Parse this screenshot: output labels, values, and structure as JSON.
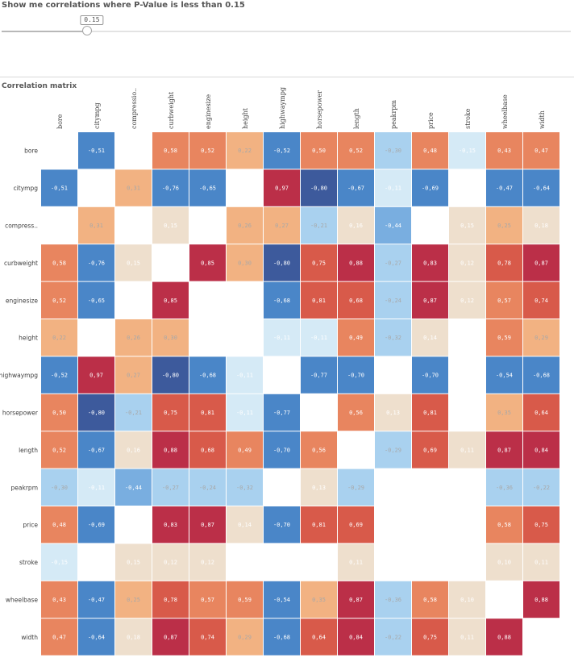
{
  "filter": {
    "title": "Show me correlations where P-Value is less than 0.15",
    "value": "0.15",
    "fraction": 0.15
  },
  "section_title": "Correlation matrix",
  "chart_data": {
    "type": "heatmap",
    "title": "Correlation matrix",
    "columns": [
      "bore",
      "citympg",
      "compressio..",
      "curbweight",
      "enginesize",
      "height",
      "highwaympg",
      "horsepower",
      "length",
      "peakrpm",
      "price",
      "stroke",
      "wheelbase",
      "width"
    ],
    "rows": [
      "bore",
      "citympg",
      "compress..",
      "curbweight",
      "enginesize",
      "height",
      "highwaympg",
      "horsepower",
      "length",
      "peakrpm",
      "price",
      "stroke",
      "wheelbase",
      "width"
    ],
    "values": [
      [
        null,
        -0.51,
        null,
        0.58,
        0.52,
        0.22,
        -0.52,
        0.5,
        0.52,
        -0.3,
        0.48,
        -0.15,
        0.43,
        0.47
      ],
      [
        -0.51,
        null,
        0.31,
        -0.76,
        -0.65,
        null,
        0.97,
        -0.8,
        -0.67,
        -0.11,
        -0.69,
        null,
        -0.47,
        -0.64
      ],
      [
        null,
        0.31,
        null,
        0.15,
        null,
        0.26,
        0.27,
        -0.21,
        0.16,
        -0.44,
        null,
        0.15,
        0.25,
        0.18
      ],
      [
        0.58,
        -0.76,
        0.15,
        null,
        0.85,
        0.3,
        -0.8,
        0.75,
        0.88,
        -0.27,
        0.83,
        0.12,
        0.78,
        0.87
      ],
      [
        0.52,
        -0.65,
        null,
        0.85,
        null,
        null,
        -0.68,
        0.81,
        0.68,
        -0.24,
        0.87,
        0.12,
        0.57,
        0.74
      ],
      [
        0.22,
        null,
        0.26,
        0.3,
        null,
        null,
        -0.11,
        -0.11,
        0.49,
        -0.32,
        0.14,
        null,
        0.59,
        0.29
      ],
      [
        -0.52,
        0.97,
        0.27,
        -0.8,
        -0.68,
        -0.11,
        null,
        -0.77,
        -0.7,
        null,
        -0.7,
        null,
        -0.54,
        -0.68
      ],
      [
        0.5,
        -0.8,
        -0.21,
        0.75,
        0.81,
        -0.11,
        -0.77,
        null,
        0.56,
        0.13,
        0.81,
        null,
        0.35,
        0.64
      ],
      [
        0.52,
        -0.67,
        0.16,
        0.88,
        0.68,
        0.49,
        -0.7,
        0.56,
        null,
        -0.29,
        0.69,
        0.11,
        0.87,
        0.84
      ],
      [
        -0.3,
        -0.11,
        -0.44,
        -0.27,
        -0.24,
        -0.32,
        null,
        0.13,
        -0.29,
        null,
        null,
        null,
        -0.36,
        -0.22
      ],
      [
        0.48,
        -0.69,
        null,
        0.83,
        0.87,
        0.14,
        -0.7,
        0.81,
        0.69,
        null,
        null,
        null,
        0.58,
        0.75
      ],
      [
        -0.15,
        null,
        0.15,
        0.12,
        0.12,
        null,
        null,
        null,
        0.11,
        null,
        null,
        null,
        0.1,
        0.11
      ],
      [
        0.43,
        -0.47,
        0.25,
        0.78,
        0.57,
        0.59,
        -0.54,
        0.35,
        0.87,
        -0.36,
        0.58,
        0.1,
        null,
        0.88
      ],
      [
        0.47,
        -0.64,
        0.18,
        0.87,
        0.74,
        0.29,
        -0.68,
        0.64,
        0.84,
        -0.22,
        0.75,
        0.11,
        0.88,
        null
      ]
    ],
    "labels": [
      [
        "",
        "-0,51",
        "",
        "0,58",
        "0,52",
        "0,22",
        "-0,52",
        "0,50",
        "0,52",
        "-0,30",
        "0,48",
        "-0,15",
        "0,43",
        "0,47"
      ],
      [
        "-0,51",
        "",
        "0,31",
        "-0,76",
        "-0,65",
        "",
        "0,97",
        "-0,80",
        "-0,67",
        "-0,11",
        "-0,69",
        "",
        "-0,47",
        "-0,64"
      ],
      [
        "",
        "0,31",
        "",
        "0,15",
        "",
        "0,26",
        "0,27",
        "-0,21",
        "0,16",
        "-0,44",
        "",
        "0,15",
        "0,25",
        "0,18"
      ],
      [
        "0,58",
        "-0,76",
        "0,15",
        "",
        "0,85",
        "0,30",
        "-0,80",
        "0,75",
        "0,88",
        "-0,27",
        "0,83",
        "0,12",
        "0,78",
        "0,87"
      ],
      [
        "0,52",
        "-0,65",
        "",
        "0,85",
        "",
        "",
        "-0,68",
        "0,81",
        "0,68",
        "-0,24",
        "0,87",
        "0,12",
        "0,57",
        "0,74"
      ],
      [
        "0,22",
        "",
        "0,26",
        "0,30",
        "",
        "",
        "-0,11",
        "-0,11",
        "0,49",
        "-0,32",
        "0,14",
        "",
        "0,59",
        "0,29"
      ],
      [
        "-0,52",
        "0,97",
        "0,27",
        "-0,80",
        "-0,68",
        "-0,11",
        "",
        "-0,77",
        "-0,70",
        "",
        "-0,70",
        "",
        "-0,54",
        "-0,68"
      ],
      [
        "0,50",
        "-0,80",
        "-0,21",
        "0,75",
        "0,81",
        "-0,11",
        "-0,77",
        "",
        "0,56",
        "0,13",
        "0,81",
        "",
        "0,35",
        "0,64"
      ],
      [
        "0,52",
        "-0,67",
        "0,16",
        "0,88",
        "0,68",
        "0,49",
        "-0,70",
        "0,56",
        "",
        "-0,29",
        "0,69",
        "0,11",
        "0,87",
        "0,84"
      ],
      [
        "-0,30",
        "-0,11",
        "-0,44",
        "-0,27",
        "-0,24",
        "-0,32",
        "",
        "0,13",
        "-0,29",
        "",
        "",
        "",
        "-0,36",
        "-0,22"
      ],
      [
        "0,48",
        "-0,69",
        "",
        "0,83",
        "0,87",
        "0,14",
        "-0,70",
        "0,81",
        "0,69",
        "",
        "",
        "",
        "0,58",
        "0,75"
      ],
      [
        "-0,15",
        "",
        "0,15",
        "0,12",
        "0,12",
        "",
        "",
        "",
        "0,11",
        "",
        "",
        "",
        "0,10",
        "0,11"
      ],
      [
        "0,43",
        "-0,47",
        "0,25",
        "0,78",
        "0,57",
        "0,59",
        "-0,54",
        "0,35",
        "0,87",
        "-0,36",
        "0,58",
        "0,10",
        "",
        "0,88"
      ],
      [
        "0,47",
        "-0,64",
        "0,18",
        "0,87",
        "0,74",
        "0,29",
        "-0,68",
        "0,64",
        "0,84",
        "-0,22",
        "0,75",
        "0,11",
        "0,88",
        ""
      ]
    ],
    "colors": {
      "strong_negative": "#3d5a9c",
      "negative": "#4a86c8",
      "mild_negative": "#79aee0",
      "weak_negative": "#a9d1ef",
      "faint_negative": "#d5eaf6",
      "faint_positive": "#eedfcd",
      "weak_positive": "#f2b282",
      "moderate_positive": "#e8855f",
      "positive": "#d85a4a",
      "strong_positive": "#bb2f48",
      "muted_text": "#a8a8a8",
      "text": "#ffffff"
    },
    "grid": false,
    "legend": "none"
  }
}
